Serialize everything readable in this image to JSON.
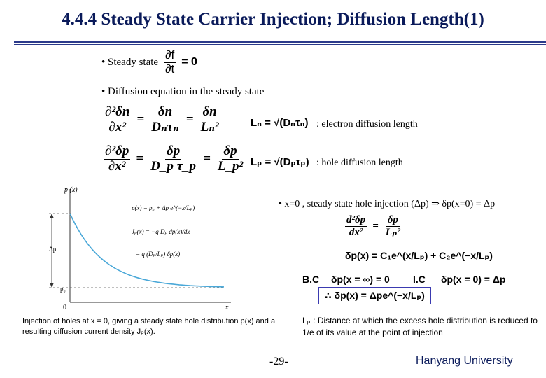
{
  "title": "4.4.4 Steady State Carrier Injection; Diffusion Length(1)",
  "bullets": {
    "steady_state": "• Steady state",
    "steady_state_eq": {
      "num": "∂f",
      "den": "∂t",
      "rhs": "= 0"
    },
    "diffusion_eq": "• Diffusion equation in the steady state",
    "x0_injection": "• x=0 , steady state hole injection (Δp) ⇒ δp(x=0) = Δp"
  },
  "equations": {
    "electron": {
      "lhs_num": "∂²δn",
      "lhs_den": "∂x²",
      "mid_num": "δn",
      "mid_den": "Dₙτₙ",
      "rhs_num": "δn",
      "rhs_den": "Lₙ²",
      "length": "Lₙ = √(Dₙτₙ)",
      "desc": ": electron diffusion length"
    },
    "hole": {
      "lhs_num": "∂²δp",
      "lhs_den": "∂x²",
      "mid_num": "δp",
      "mid_den": "D_p τ_p",
      "rhs_num": "δp",
      "rhs_den": "L_p²",
      "length": "Lₚ = √(Dₚτₚ)",
      "desc": ": hole diffusion length"
    },
    "ode": {
      "lhs_num": "d²δp",
      "lhs_den": "dx²",
      "rhs_num": "δp",
      "rhs_den": "Lₚ²"
    },
    "general": "δp(x) = C₁e^(x/Lₚ) + C₂e^(−x/Lₚ)",
    "bc_label": "B.C",
    "bc": "δp(x = ∞) = 0",
    "ic_label": "I.C",
    "ic": "δp(x = 0) = Δp",
    "solution": "∴ δp(x) = Δpe^(−x/Lₚ)"
  },
  "figure": {
    "y_axis": "p (x)",
    "x_axis": "x",
    "origin": "0",
    "delta_p": "Δp",
    "p0": "p₀",
    "eq1": "p(x) = p₀ + Δp e^(−x/Lₚ)",
    "eq2": "Jₚ(x) = −q Dₚ dp(x)/dx",
    "eq3": "= q (Dₚ/Lₚ) δp(x)",
    "caption": "Injection of holes at x = 0, giving a steady state hole distribution p(x) and a resulting diffusion current density Jₚ(x)."
  },
  "lp_note": "Lₚ : Distance at which the excess hole distribution is reduced to 1/e of its value at the point of injection",
  "footer": {
    "page": "-29-",
    "institution": "Hanyang University"
  },
  "colors": {
    "title": "#0a1a5a",
    "curve": "#4aa8d8",
    "box": "#3a3ab0"
  }
}
